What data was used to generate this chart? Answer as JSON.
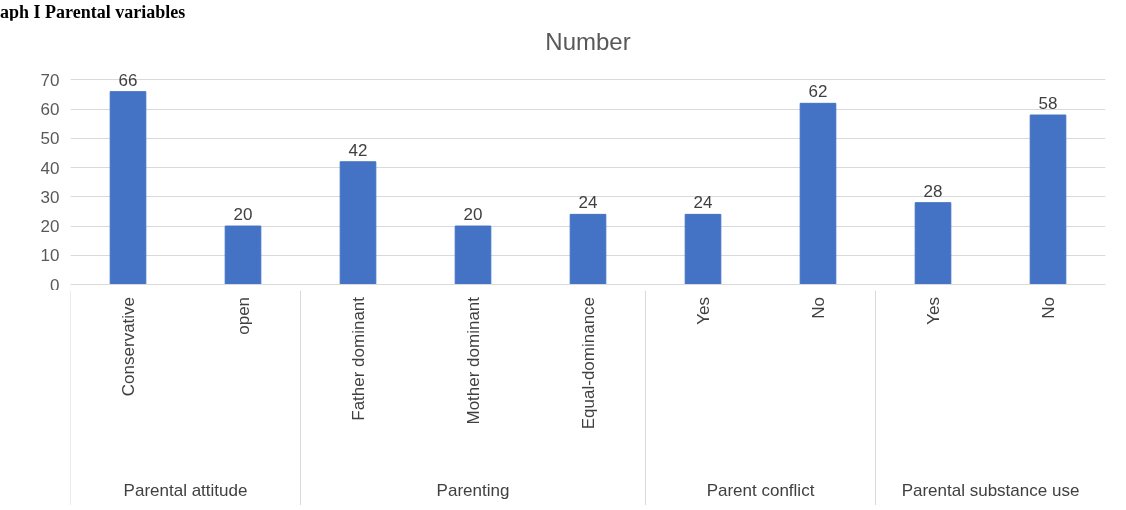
{
  "chart_data": {
    "type": "bar",
    "title": "Number",
    "categories": [
      "Conservative",
      "open",
      "Father dominant",
      "Mother dominant",
      "Equal-dominance",
      "Yes",
      "No",
      "Yes",
      "No"
    ],
    "values": [
      66,
      20,
      42,
      20,
      24,
      24,
      62,
      28,
      58
    ],
    "color": "#4472c4",
    "ylim": [
      0,
      70
    ],
    "yticks": [
      0,
      10,
      20,
      30,
      40,
      50,
      60,
      70
    ],
    "grid": "y",
    "data_labels": true,
    "annotations": [
      "aph I Parental variables",
      "Parental attitude",
      "Parenting",
      "Parent conflict",
      "Parental substance use"
    ]
  }
}
